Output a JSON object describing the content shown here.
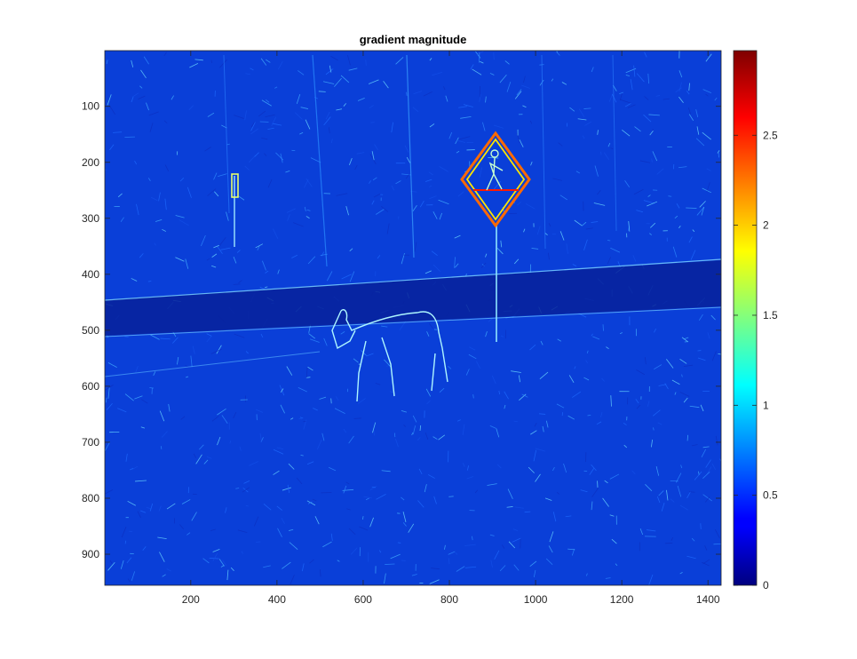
{
  "chart_data": {
    "type": "heatmap",
    "title": "gradient magnitude",
    "xlabel": "",
    "ylabel": "",
    "xlim": [
      0.5,
      1430.5
    ],
    "ylim": [
      0.5,
      955.5
    ],
    "y_reversed": true,
    "x_ticks": [
      200,
      400,
      600,
      800,
      1000,
      1200,
      1400
    ],
    "y_ticks": [
      100,
      200,
      300,
      400,
      500,
      600,
      700,
      800,
      900
    ],
    "colormap": "jet",
    "colorbar": {
      "min": 0,
      "max": 2.97,
      "ticks": [
        0,
        0.5,
        1,
        1.5,
        2,
        2.5
      ],
      "placement": "right"
    },
    "grid": false
  }
}
